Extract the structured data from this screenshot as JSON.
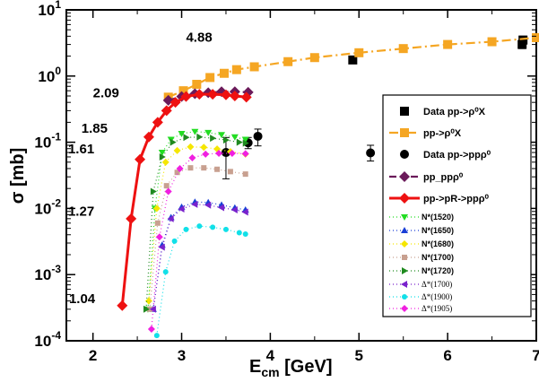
{
  "chart_data": {
    "type": "line",
    "xlabel": "E",
    "xlabel_sub": "cm",
    "xlabel_unit": " [GeV]",
    "ylabel": "σ  [mb]",
    "xlim": [
      1.7,
      7
    ],
    "ylim": [
      0.0001,
      10
    ],
    "yscale": "log",
    "grid": false,
    "legend_position": "right",
    "x_ticks": [
      {
        "value": 2,
        "label": "2"
      },
      {
        "value": 3,
        "label": "3"
      },
      {
        "value": 4,
        "label": "4"
      },
      {
        "value": 5,
        "label": "5"
      },
      {
        "value": 6,
        "label": "6"
      },
      {
        "value": 7,
        "label": "7"
      }
    ],
    "y_ticks": [
      {
        "value": 10,
        "base": "10",
        "exp": "1"
      },
      {
        "value": 1,
        "base": "10",
        "exp": "0"
      },
      {
        "value": 0.1,
        "base": "10",
        "exp": "-1"
      },
      {
        "value": 0.01,
        "base": "10",
        "exp": "-2"
      },
      {
        "value": 0.001,
        "base": "10",
        "exp": "-3"
      },
      {
        "value": 0.0001,
        "base": "10",
        "exp": "-4"
      }
    ],
    "annotations": [
      {
        "text": "4.88",
        "x": 3.05,
        "y": 3.3
      },
      {
        "text": "2.09",
        "x": 2.0,
        "y": 0.48
      },
      {
        "text": "1.85",
        "x": 1.87,
        "y": 0.14
      },
      {
        "text": "1.61",
        "x": 1.72,
        "y": 0.068
      },
      {
        "text": "1.27",
        "x": 1.72,
        "y": 0.0078
      },
      {
        "text": "1.04",
        "x": 1.73,
        "y": 0.00037
      }
    ],
    "series": [
      {
        "name": "Data  pp->ρ⁰X",
        "kind": "data",
        "marker": "square",
        "color": "#000000",
        "x": [
          4.93,
          6.84,
          6.85
        ],
        "y": [
          1.75,
          3.0,
          3.5
        ],
        "err_lo": [
          1.55,
          2.6,
          3.0
        ],
        "err_hi": [
          1.95,
          3.45,
          4.0
        ]
      },
      {
        "name": "pp->ρ⁰X",
        "kind": "line",
        "marker": "square",
        "color": "#f5a623",
        "dash": "10,4,2,4",
        "x": [
          2.85,
          3.02,
          3.17,
          3.32,
          3.48,
          3.62,
          3.82,
          4.2,
          4.5,
          5.0,
          5.5,
          6.0,
          6.5,
          7.0
        ],
        "y": [
          0.48,
          0.6,
          0.75,
          0.95,
          1.1,
          1.25,
          1.38,
          1.65,
          1.9,
          2.25,
          2.6,
          3.0,
          3.3,
          3.8
        ]
      },
      {
        "name": "Data pp->ppρ⁰",
        "kind": "data",
        "marker": "circle",
        "color": "#000000",
        "x": [
          3.5,
          3.75,
          3.86,
          5.13
        ],
        "y": [
          0.07,
          0.098,
          0.123,
          0.069
        ],
        "err_lo": [
          0.028,
          0.08,
          0.088,
          0.052
        ],
        "err_hi": [
          0.118,
          0.118,
          0.158,
          0.09
        ]
      },
      {
        "name": "pp_ppρ⁰",
        "kind": "line",
        "marker": "diamond",
        "color": "#6b1a5a",
        "dash": "8,4",
        "x": [
          2.85,
          3.0,
          3.15,
          3.3,
          3.45,
          3.6,
          3.75
        ],
        "y": [
          0.43,
          0.49,
          0.54,
          0.56,
          0.58,
          0.58,
          0.57
        ]
      },
      {
        "name": "pp->pR->ppρ⁰",
        "kind": "line",
        "marker": "diamond",
        "color": "#ee1111",
        "dash": "",
        "x": [
          2.33,
          2.43,
          2.53,
          2.63,
          2.73,
          2.83,
          2.93,
          3.05,
          3.2,
          3.35,
          3.5,
          3.6,
          3.73
        ],
        "y": [
          0.00034,
          0.007,
          0.055,
          0.12,
          0.2,
          0.3,
          0.4,
          0.49,
          0.53,
          0.53,
          0.52,
          0.5,
          0.48
        ]
      },
      {
        "name": "N*(1520)",
        "kind": "line",
        "marker": "tri-down",
        "color": "#22dd22",
        "dash": "1,3",
        "x": [
          2.62,
          2.7,
          2.78,
          2.88,
          3.0,
          3.15,
          3.3,
          3.45,
          3.6,
          3.72
        ],
        "y": [
          0.0003,
          0.01,
          0.07,
          0.11,
          0.135,
          0.145,
          0.14,
          0.13,
          0.12,
          0.11
        ]
      },
      {
        "name": "N*(1650)",
        "kind": "line",
        "marker": "tri-up",
        "color": "#1a3fd6",
        "dash": "1,3",
        "x": [
          2.68,
          2.78,
          2.88,
          3.0,
          3.15,
          3.3,
          3.45,
          3.6,
          3.72
        ],
        "y": [
          0.0003,
          0.0028,
          0.0073,
          0.0105,
          0.0125,
          0.0123,
          0.0113,
          0.0102,
          0.0095
        ]
      },
      {
        "name": "N*(1680)",
        "kind": "line",
        "marker": "diamond-small",
        "color": "#f5e600",
        "dash": "1,3",
        "x": [
          2.63,
          2.72,
          2.82,
          2.95,
          3.1,
          3.25,
          3.4,
          3.55,
          3.72
        ],
        "y": [
          0.0004,
          0.01,
          0.05,
          0.075,
          0.085,
          0.084,
          0.079,
          0.072,
          0.066
        ]
      },
      {
        "name": "N*(1700)",
        "kind": "line",
        "marker": "square-small",
        "color": "#c8a090",
        "dash": "1,3",
        "x": [
          2.64,
          2.73,
          2.83,
          2.95,
          3.1,
          3.25,
          3.4,
          3.55,
          3.72
        ],
        "y": [
          0.0003,
          0.006,
          0.022,
          0.035,
          0.041,
          0.041,
          0.039,
          0.036,
          0.033
        ]
      },
      {
        "name": "N*(1720)",
        "kind": "line",
        "marker": "tri-right",
        "color": "#1f8a1f",
        "dash": "1,3",
        "x": [
          2.6,
          2.68,
          2.78,
          2.9,
          3.05,
          3.2,
          3.35,
          3.5,
          3.65,
          3.72
        ],
        "y": [
          0.0003,
          0.018,
          0.06,
          0.1,
          0.118,
          0.12,
          0.115,
          0.108,
          0.1,
          0.097
        ]
      },
      {
        "name": "Δ*(1700)",
        "kind": "line",
        "marker": "tri-left",
        "color": "#7a22cc",
        "dash": "1,3",
        "x": [
          2.68,
          2.78,
          2.88,
          3.0,
          3.15,
          3.3,
          3.45,
          3.6,
          3.72
        ],
        "y": [
          0.0003,
          0.0026,
          0.007,
          0.0098,
          0.0115,
          0.0112,
          0.0103,
          0.0095,
          0.0088
        ]
      },
      {
        "name": "Δ*(1900)",
        "kind": "line",
        "marker": "circle-small",
        "color": "#11e0e8",
        "dash": "1,3",
        "x": [
          2.72,
          2.82,
          2.92,
          3.05,
          3.2,
          3.35,
          3.5,
          3.65,
          3.72
        ],
        "y": [
          0.00012,
          0.0011,
          0.0032,
          0.0048,
          0.0054,
          0.0052,
          0.0048,
          0.0043,
          0.0041
        ]
      },
      {
        "name": "Δ*(1905)",
        "kind": "line",
        "marker": "diamond-small",
        "color": "#f020e0",
        "dash": "1,3",
        "x": [
          2.66,
          2.75,
          2.85,
          2.98,
          3.12,
          3.27,
          3.42,
          3.57,
          3.72
        ],
        "y": [
          0.00015,
          0.0037,
          0.018,
          0.04,
          0.058,
          0.066,
          0.068,
          0.068,
          0.067
        ]
      }
    ]
  }
}
